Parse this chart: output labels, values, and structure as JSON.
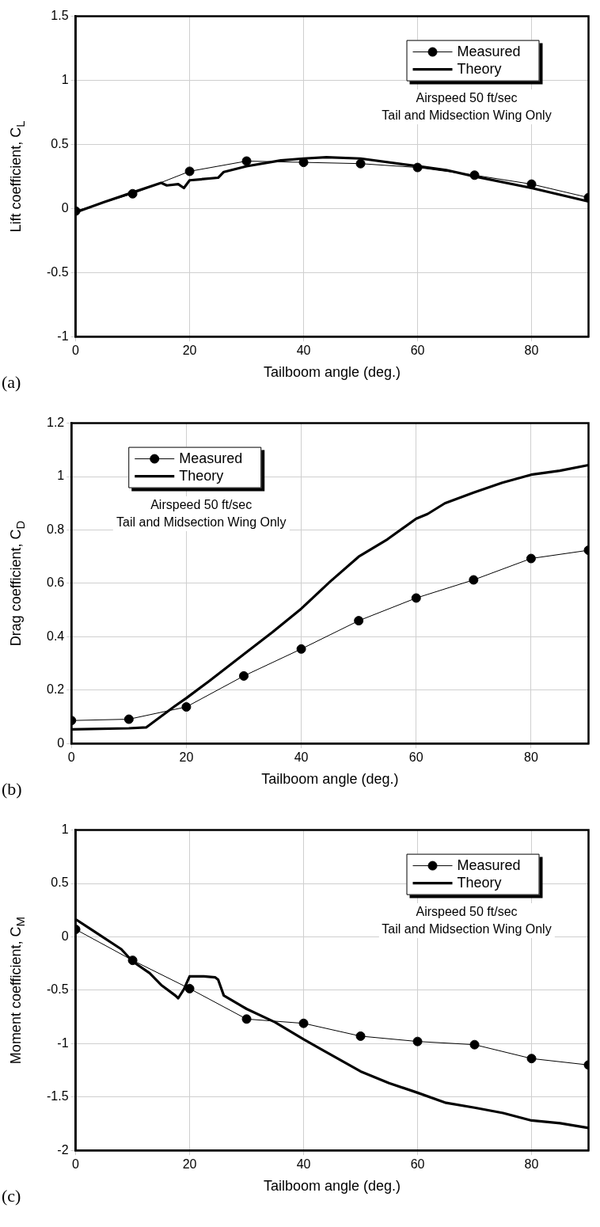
{
  "chart_data": [
    {
      "type": "line",
      "xlabel": "Tailboom angle (deg.)",
      "ylabel": "Lift coefficient, C$_{L}$",
      "xlim": [
        0,
        90
      ],
      "xticks": [
        0,
        20,
        40,
        60,
        80
      ],
      "ylim": [
        -1,
        1.5
      ],
      "yticks": [
        -1,
        -0.5,
        0,
        0.5,
        1,
        1.5
      ],
      "grid": true,
      "legend": "top right",
      "annotations": [
        "(a)",
        "Airspeed 50 ft/sec",
        "Tail and Midsection Wing Only"
      ],
      "series": [
        {
          "name": "Measured",
          "color": "#000000",
          "marker": "circle",
          "x": [
            0,
            10,
            20,
            30,
            40,
            50,
            60,
            70,
            80,
            90
          ],
          "values": [
            -0.02,
            0.115,
            0.29,
            0.37,
            0.36,
            0.35,
            0.32,
            0.26,
            0.19,
            0.085
          ]
        },
        {
          "name": "Theory",
          "color": "#000000",
          "marker": "none",
          "x": [
            0,
            5,
            10,
            15,
            16,
            18,
            19,
            20,
            25,
            26,
            30,
            36,
            40,
            44,
            50,
            60,
            65,
            70,
            80,
            90
          ],
          "values": [
            -0.03,
            0.05,
            0.125,
            0.2,
            0.18,
            0.19,
            0.16,
            0.22,
            0.24,
            0.285,
            0.33,
            0.375,
            0.39,
            0.4,
            0.39,
            0.33,
            0.3,
            0.25,
            0.16,
            0.055
          ]
        }
      ]
    },
    {
      "type": "line",
      "xlabel": "Tailboom angle (deg.)",
      "ylabel": "Drag coefficient, C$_{D}$",
      "xlim": [
        0,
        90
      ],
      "xticks": [
        0,
        20,
        40,
        60,
        80
      ],
      "ylim": [
        0,
        1.2
      ],
      "yticks": [
        0,
        0.2,
        0.4,
        0.6,
        0.8,
        1,
        1.2
      ],
      "grid": true,
      "legend": "top left",
      "annotations": [
        "(b)",
        "Airspeed 50 ft/sec",
        "Tail and Midsection Wing Only"
      ],
      "series": [
        {
          "name": "Measured",
          "color": "#000000",
          "marker": "circle",
          "x": [
            0,
            10,
            20,
            30,
            40,
            50,
            60,
            70,
            80,
            90
          ],
          "values": [
            0.086,
            0.091,
            0.137,
            0.253,
            0.354,
            0.46,
            0.545,
            0.613,
            0.693,
            0.724
          ]
        },
        {
          "name": "Theory",
          "color": "#000000",
          "marker": "none",
          "x": [
            0,
            10,
            13,
            18,
            20,
            24,
            30,
            35,
            40,
            45,
            50,
            55,
            60,
            62,
            65,
            70,
            75,
            80,
            85,
            90
          ],
          "values": [
            0.053,
            0.057,
            0.06,
            0.14,
            0.17,
            0.234,
            0.334,
            0.417,
            0.505,
            0.606,
            0.7,
            0.765,
            0.842,
            0.86,
            0.9,
            0.94,
            0.977,
            1.007,
            1.022,
            1.043
          ]
        }
      ]
    },
    {
      "type": "line",
      "xlabel": "Tailboom angle (deg.)",
      "ylabel": "Moment coefficient, C$_{M}$",
      "xlim": [
        0,
        90
      ],
      "xticks": [
        0,
        20,
        40,
        60,
        80
      ],
      "ylim": [
        -2,
        1
      ],
      "yticks": [
        -2,
        -1.5,
        -1,
        -0.5,
        0,
        0.5,
        1
      ],
      "grid": true,
      "legend": "top right",
      "annotations": [
        "(c)",
        "Airspeed 50 ft/sec",
        "Tail and Midsection Wing Only"
      ],
      "series": [
        {
          "name": "Measured",
          "color": "#000000",
          "marker": "circle",
          "x": [
            0,
            10,
            20,
            30,
            40,
            50,
            60,
            70,
            80,
            90
          ],
          "values": [
            0.07,
            -0.22,
            -0.485,
            -0.77,
            -0.81,
            -0.93,
            -0.98,
            -1.01,
            -1.14,
            -1.2
          ]
        },
        {
          "name": "Theory",
          "color": "#000000",
          "marker": "none",
          "x": [
            0,
            3,
            8,
            10,
            13,
            15,
            17.5,
            18,
            19,
            20,
            22.5,
            24.5,
            25,
            26,
            30,
            35,
            40,
            43,
            50,
            55,
            60,
            65,
            70,
            75,
            80,
            85,
            90
          ],
          "values": [
            0.165,
            0.06,
            -0.115,
            -0.23,
            -0.34,
            -0.45,
            -0.55,
            -0.575,
            -0.49,
            -0.37,
            -0.37,
            -0.38,
            -0.4,
            -0.55,
            -0.675,
            -0.8,
            -0.96,
            -1.05,
            -1.26,
            -1.37,
            -1.46,
            -1.555,
            -1.6,
            -1.65,
            -1.72,
            -1.745,
            -1.79
          ]
        }
      ]
    }
  ]
}
